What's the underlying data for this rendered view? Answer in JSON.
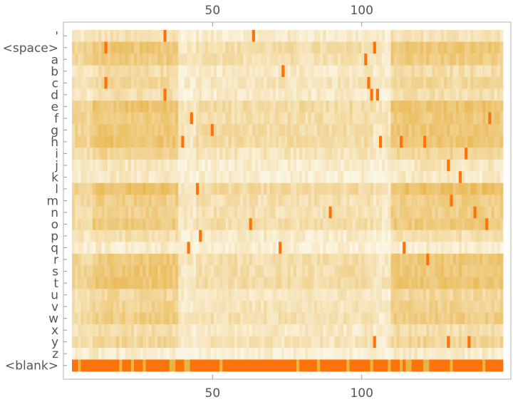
{
  "chart_data": {
    "type": "heatmap",
    "title": "",
    "xlabel": "",
    "ylabel": "",
    "xlim": [
      0,
      150
    ],
    "x_ticks": [
      {
        "value": 50,
        "label": "50"
      },
      {
        "value": 100,
        "label": "100"
      }
    ],
    "x_tick_labels_top": true,
    "x_tick_labels_bottom": true,
    "n_columns": 146,
    "row_labels": [
      "'",
      "<space>",
      "a",
      "b",
      "c",
      "d",
      "e",
      "f",
      "g",
      "h",
      "i",
      "j",
      "k",
      "l",
      "m",
      "n",
      "o",
      "p",
      "q",
      "r",
      "s",
      "t",
      "u",
      "v",
      "w",
      "x",
      "y",
      "z",
      "<blank>"
    ],
    "value_range": [
      0,
      1
    ],
    "color_scale": {
      "low": "#fbf6e4",
      "mid": "#e8b347",
      "high": "#ff6a00"
    },
    "row_mean_intensity": [
      0.18,
      0.42,
      0.38,
      0.22,
      0.28,
      0.2,
      0.45,
      0.4,
      0.42,
      0.44,
      0.3,
      0.15,
      0.12,
      0.48,
      0.36,
      0.34,
      0.4,
      0.2,
      0.1,
      0.4,
      0.42,
      0.44,
      0.28,
      0.32,
      0.36,
      0.22,
      0.3,
      0.1,
      0.95
    ],
    "grid": false,
    "legend": "none"
  }
}
